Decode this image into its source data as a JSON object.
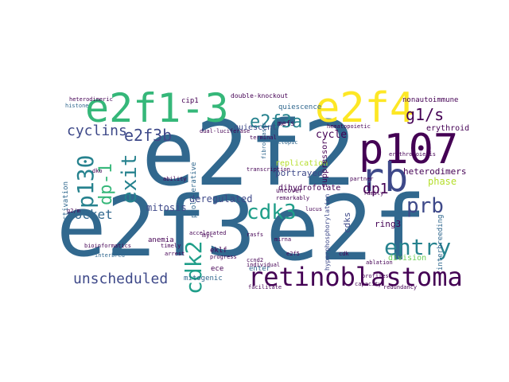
{
  "image": {
    "kind": "word cloud",
    "background": "#ffffff"
  },
  "palette": {
    "dark_purple": "#440154",
    "indigo": "#482878",
    "blue": "#3e4989",
    "steel_blue": "#31688e",
    "teal": "#26828e",
    "sea_green": "#1f9e89",
    "green": "#35b779",
    "light_green": "#6ece58",
    "yellow_green": "#b5de2b",
    "yellow": "#fde725"
  },
  "words": [
    {
      "text": "e2f2",
      "color": "#31688e",
      "weight": 10
    },
    {
      "text": "e2f3",
      "color": "#31688e",
      "weight": 10
    },
    {
      "text": "e2f",
      "color": "#31688e",
      "weight": 10
    },
    {
      "text": "e2f1-3",
      "color": "#35b779",
      "weight": 8
    },
    {
      "text": "e2f4",
      "color": "#fde725",
      "weight": 8
    },
    {
      "text": "p107",
      "color": "#440154",
      "weight": 8
    },
    {
      "text": "rb",
      "color": "#3e4989",
      "weight": 8
    },
    {
      "text": "retinoblastoma",
      "color": "#440154",
      "weight": 7
    },
    {
      "text": "cdk3",
      "color": "#1f9e89",
      "weight": 6
    },
    {
      "text": "entry",
      "color": "#26828e",
      "weight": 6
    },
    {
      "text": "prb",
      "color": "#3e4989",
      "weight": 6
    },
    {
      "text": "cdk2",
      "color": "#1f9e89",
      "weight": 6
    },
    {
      "text": "p130",
      "color": "#26828e",
      "weight": 6
    },
    {
      "text": "exit",
      "color": "#26828e",
      "weight": 6
    },
    {
      "text": "dp-1",
      "color": "#35b779",
      "weight": 6
    },
    {
      "text": "e2f3a",
      "color": "#26828e",
      "weight": 5
    },
    {
      "text": "e2f3b",
      "color": "#3e4989",
      "weight": 5
    },
    {
      "text": "g1/s",
      "color": "#440154",
      "weight": 5
    },
    {
      "text": "unscheduled",
      "color": "#3e4989",
      "weight": 5
    },
    {
      "text": "cyclins",
      "color": "#3e4989",
      "weight": 5
    },
    {
      "text": "pocket",
      "color": "#31688e",
      "weight": 4
    },
    {
      "text": "dp1",
      "color": "#440154",
      "weight": 4
    },
    {
      "text": "deregulated",
      "color": "#3e4989",
      "weight": 3
    },
    {
      "text": "mitosis",
      "color": "#3e4989",
      "weight": 3
    },
    {
      "text": "cycle",
      "color": "#440154",
      "weight": 3
    },
    {
      "text": "phase",
      "color": "#b5de2b",
      "weight": 3
    },
    {
      "text": "portrayed",
      "color": "#3e4989",
      "weight": 3
    },
    {
      "text": "ring3",
      "color": "#440154",
      "weight": 3
    },
    {
      "text": "heterodimers",
      "color": "#440154",
      "weight": 3
    },
    {
      "text": "erythroid",
      "color": "#440154",
      "weight": 3
    },
    {
      "text": "replication",
      "color": "#b5de2b",
      "weight": 3
    },
    {
      "text": "dihydrofolate",
      "color": "#440154",
      "weight": 3
    },
    {
      "text": "division",
      "color": "#6ece58",
      "weight": 3
    },
    {
      "text": "quiescent",
      "color": "#3e4989",
      "weight": 3
    },
    {
      "text": "suppressor",
      "color": "#440154",
      "weight": 3
    },
    {
      "text": "cdks",
      "color": "#3e4989",
      "weight": 3
    },
    {
      "text": "quiescence",
      "color": "#31688e",
      "weight": 2
    },
    {
      "text": "anemia",
      "color": "#440154",
      "weight": 2
    },
    {
      "text": "mefs",
      "color": "#440154",
      "weight": 2
    },
    {
      "text": "nonautoimmune",
      "color": "#440154",
      "weight": 2
    },
    {
      "text": "cip1",
      "color": "#440154",
      "weight": 2
    },
    {
      "text": "double-knockout",
      "color": "#440154",
      "weight": 2
    },
    {
      "text": "proliferative",
      "color": "#31688e",
      "weight": 2
    },
    {
      "text": "eklf",
      "color": "#440154",
      "weight": 2
    },
    {
      "text": "ece",
      "color": "#440154",
      "weight": 2
    },
    {
      "text": "mitogenic",
      "color": "#31688e",
      "weight": 2
    },
    {
      "text": "enter",
      "color": "#31688e",
      "weight": 2
    },
    {
      "text": "interbreeding",
      "color": "#31688e",
      "weight": 2
    },
    {
      "text": "inactivation",
      "color": "#31688e",
      "weight": 2
    },
    {
      "text": "uncover",
      "color": "#440154",
      "weight": 2
    },
    {
      "text": "hyperphosphorylation",
      "color": "#3e4989",
      "weight": 2
    },
    {
      "text": "dual-luciferase",
      "color": "#440154",
      "weight": 1
    },
    {
      "text": "heterodimeric",
      "color": "#440154",
      "weight": 1
    },
    {
      "text": "histone",
      "color": "#31688e",
      "weight": 1
    },
    {
      "text": "accelerated",
      "color": "#440154",
      "weight": 1
    },
    {
      "text": "remarkably",
      "color": "#440154",
      "weight": 1
    },
    {
      "text": "e2f5",
      "color": "#440154",
      "weight": 1
    },
    {
      "text": "cdk",
      "color": "#440154",
      "weight": 1
    },
    {
      "text": "ccnd2",
      "color": "#440154",
      "weight": 1
    },
    {
      "text": "individual",
      "color": "#440154",
      "weight": 1
    },
    {
      "text": "progress",
      "color": "#440154",
      "weight": 1
    },
    {
      "text": "timely",
      "color": "#440154",
      "weight": 1
    },
    {
      "text": "arrest",
      "color": "#440154",
      "weight": 1
    },
    {
      "text": "bioinformatics",
      "color": "#440154",
      "weight": 1
    },
    {
      "text": "interbred",
      "color": "#31688e",
      "weight": 1
    },
    {
      "text": "fibroblasts",
      "color": "#31688e",
      "weight": 1
    },
    {
      "text": "ectopic",
      "color": "#31688e",
      "weight": 1
    },
    {
      "text": "terminal",
      "color": "#440154",
      "weight": 1
    },
    {
      "text": "hematopoietic",
      "color": "#440154",
      "weight": 1
    },
    {
      "text": "partner",
      "color": "#440154",
      "weight": 1
    },
    {
      "text": "family",
      "color": "#440154",
      "weight": 1
    },
    {
      "text": "g2/m",
      "color": "#440154",
      "weight": 1
    },
    {
      "text": "dko",
      "color": "#440154",
      "weight": 1
    },
    {
      "text": "myc",
      "color": "#440154",
      "weight": 1
    },
    {
      "text": "ablation",
      "color": "#440154",
      "weight": 1
    },
    {
      "text": "profiles",
      "color": "#440154",
      "weight": 1
    },
    {
      "text": "mirna",
      "color": "#440154",
      "weight": 1
    },
    {
      "text": "rasfs",
      "color": "#440154",
      "weight": 1
    },
    {
      "text": "lucus",
      "color": "#440154",
      "weight": 1
    },
    {
      "text": "ability",
      "color": "#440154",
      "weight": 1
    },
    {
      "text": "transcription",
      "color": "#440154",
      "weight": 1
    },
    {
      "text": "capacity",
      "color": "#440154",
      "weight": 1
    },
    {
      "text": "facilitate",
      "color": "#440154",
      "weight": 1
    },
    {
      "text": "redundancy",
      "color": "#440154",
      "weight": 1
    },
    {
      "text": "erythropoiesis",
      "color": "#440154",
      "weight": 1
    }
  ]
}
